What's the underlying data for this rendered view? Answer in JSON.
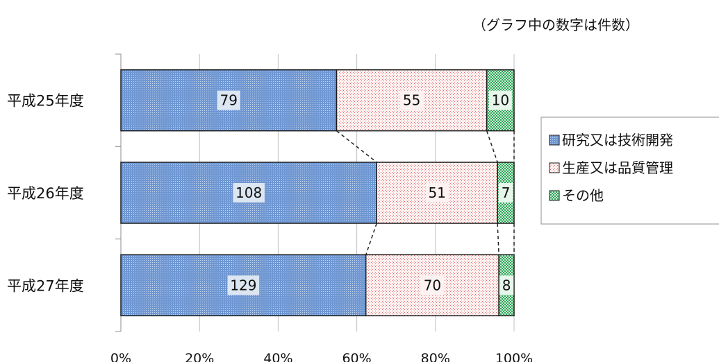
{
  "note": "（グラフ中の数字は件数）",
  "chart_data": {
    "type": "bar",
    "orientation": "horizontal",
    "stacked": "percent",
    "categories": [
      "平成25年度",
      "平成26年度",
      "平成27年度"
    ],
    "series": [
      {
        "name": "研究又は技術開発",
        "values": [
          79,
          108,
          129
        ],
        "color": "#4f81bd"
      },
      {
        "name": "生産又は品質管理",
        "values": [
          55,
          51,
          70
        ],
        "color": "#f2b8b8"
      },
      {
        "name": "その他",
        "values": [
          10,
          7,
          8
        ],
        "color": "#3cb371"
      }
    ],
    "x_ticks": [
      "0%",
      "20%",
      "40%",
      "60%",
      "80%",
      "100%"
    ],
    "xlim": [
      0,
      100
    ],
    "grid": true,
    "legend": "right"
  }
}
